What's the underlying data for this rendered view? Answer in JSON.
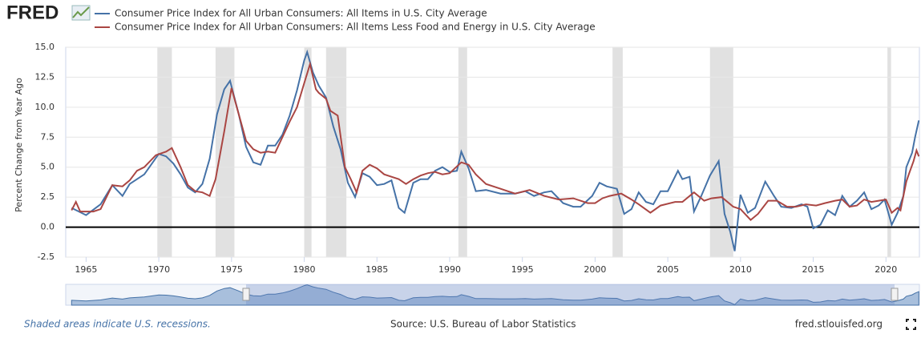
{
  "chart_data": {
    "type": "line",
    "logo": "FRED",
    "ylabel": "Percent Change from Year Ago",
    "note": "Shaded areas indicate U.S. recessions.",
    "source": "Source: U.S. Bureau of Labor Statistics",
    "site": "fred.stlouisfed.org",
    "xlim": [
      1963.6,
      2022.3
    ],
    "xticks": [
      1965,
      1970,
      1975,
      1980,
      1985,
      1990,
      1995,
      2000,
      2005,
      2010,
      2015,
      2020
    ],
    "ylim": [
      -2.5,
      15
    ],
    "yticks": [
      -2.5,
      {
        "value": 0,
        "label": "0.0"
      },
      2.5,
      {
        "value": 5,
        "label": "5.0"
      },
      7.5,
      {
        "value": 10,
        "label": "10.0"
      },
      12.5,
      {
        "value": 15,
        "label": "15.0"
      }
    ],
    "grid": true,
    "recessions": [
      [
        1969.9,
        1970.9
      ],
      [
        1973.9,
        1975.2
      ],
      [
        1980.0,
        1980.5
      ],
      [
        1981.5,
        1982.9
      ],
      [
        1990.6,
        1991.2
      ],
      [
        2001.2,
        2001.9
      ],
      [
        2007.9,
        2009.5
      ],
      [
        2020.1,
        2020.35
      ]
    ],
    "series": [
      {
        "name": "Consumer Price Index for All Urban Consumers: All Items in U.S. City Average",
        "color": "#4572a7",
        "x": [
          1964.0,
          1965.0,
          1966.0,
          1966.8,
          1967.5,
          1968.0,
          1969.0,
          1970.0,
          1970.5,
          1971.0,
          1971.5,
          1972.0,
          1972.5,
          1973.0,
          1973.5,
          1974.0,
          1974.5,
          1974.9,
          1975.5,
          1976.0,
          1976.5,
          1977.0,
          1977.5,
          1978.0,
          1978.5,
          1979.0,
          1979.5,
          1980.0,
          1980.2,
          1980.6,
          1981.0,
          1981.5,
          1982.0,
          1982.5,
          1983.0,
          1983.5,
          1984.0,
          1984.5,
          1985.0,
          1985.5,
          1986.0,
          1986.5,
          1986.9,
          1987.5,
          1988.0,
          1988.5,
          1989.0,
          1989.5,
          1990.0,
          1990.5,
          1990.8,
          1991.3,
          1991.8,
          1992.5,
          1993.5,
          1994.5,
          1995.2,
          1995.8,
          1996.5,
          1997.0,
          1997.8,
          1998.5,
          1999.0,
          1999.8,
          2000.3,
          2000.8,
          2001.5,
          2002.0,
          2002.5,
          2003.0,
          2003.5,
          2004.0,
          2004.5,
          2005.0,
          2005.7,
          2006.0,
          2006.5,
          2006.8,
          2007.3,
          2007.9,
          2008.5,
          2008.9,
          2009.3,
          2009.6,
          2010.0,
          2010.5,
          2011.0,
          2011.7,
          2012.3,
          2012.8,
          2013.5,
          2014.2,
          2014.6,
          2015.0,
          2015.5,
          2016.0,
          2016.5,
          2017.0,
          2017.5,
          2018.0,
          2018.5,
          2019.0,
          2019.5,
          2019.9,
          2020.4,
          2020.8,
          2021.2,
          2021.4,
          2021.8,
          2022.0,
          2022.26
        ],
        "values": [
          1.6,
          1.0,
          1.9,
          3.5,
          2.6,
          3.6,
          4.4,
          6.1,
          5.9,
          5.3,
          4.4,
          3.3,
          2.9,
          3.6,
          5.7,
          9.4,
          11.5,
          12.2,
          9.4,
          6.7,
          5.4,
          5.2,
          6.8,
          6.8,
          7.7,
          9.3,
          11.4,
          13.9,
          14.6,
          12.9,
          11.8,
          10.8,
          8.4,
          6.5,
          3.7,
          2.5,
          4.5,
          4.2,
          3.5,
          3.6,
          3.9,
          1.6,
          1.2,
          3.7,
          4.0,
          4.0,
          4.7,
          5.0,
          4.6,
          4.7,
          6.3,
          4.9,
          3.0,
          3.1,
          2.8,
          2.8,
          3.0,
          2.6,
          2.9,
          3.0,
          2.0,
          1.7,
          1.7,
          2.6,
          3.7,
          3.4,
          3.2,
          1.1,
          1.5,
          2.9,
          2.1,
          1.9,
          3.0,
          3.0,
          4.7,
          4.0,
          4.2,
          1.3,
          2.6,
          4.3,
          5.5,
          1.1,
          -0.4,
          -2.0,
          2.7,
          1.2,
          1.6,
          3.8,
          2.6,
          1.7,
          1.6,
          1.9,
          1.7,
          -0.1,
          0.2,
          1.4,
          1.0,
          2.6,
          1.7,
          2.2,
          2.9,
          1.5,
          1.8,
          2.3,
          0.2,
          1.2,
          2.6,
          5.0,
          6.2,
          7.5,
          8.9
        ]
      },
      {
        "name": "Consumer Price Index for All Urban Consumers: All Items Less Food and Energy in U.S. City Average",
        "color": "#aa4643",
        "x": [
          1964.0,
          1964.3,
          1964.6,
          1965.0,
          1965.5,
          1966.0,
          1966.8,
          1967.5,
          1968.0,
          1968.5,
          1969.0,
          1969.8,
          1970.5,
          1970.9,
          1971.5,
          1972.0,
          1972.5,
          1973.0,
          1973.5,
          1973.9,
          1974.5,
          1975.0,
          1975.5,
          1976.0,
          1976.5,
          1977.0,
          1977.5,
          1978.0,
          1978.5,
          1979.0,
          1979.5,
          1980.0,
          1980.4,
          1980.8,
          1981.0,
          1981.5,
          1981.8,
          1982.3,
          1982.8,
          1983.2,
          1983.6,
          1984.0,
          1984.5,
          1985.0,
          1985.5,
          1986.0,
          1986.5,
          1987.0,
          1987.5,
          1988.0,
          1988.5,
          1989.0,
          1989.5,
          1990.0,
          1990.8,
          1991.3,
          1991.8,
          1992.5,
          1993.5,
          1994.5,
          1995.5,
          1996.5,
          1997.5,
          1998.5,
          1999.5,
          2000.0,
          2000.5,
          2001.0,
          2001.8,
          2002.5,
          2003.0,
          2003.8,
          2004.5,
          2005.5,
          2006.0,
          2006.8,
          2007.5,
          2008.0,
          2008.7,
          2009.5,
          2010.0,
          2010.7,
          2011.2,
          2011.9,
          2012.5,
          2013.2,
          2013.8,
          2014.5,
          2015.2,
          2015.8,
          2016.5,
          2017.0,
          2017.5,
          2018.0,
          2018.5,
          2019.0,
          2019.5,
          2020.0,
          2020.4,
          2020.8,
          2021.0,
          2021.4,
          2021.6,
          2021.9,
          2022.1,
          2022.26
        ],
        "values": [
          1.4,
          2.1,
          1.3,
          1.3,
          1.3,
          1.5,
          3.5,
          3.4,
          3.9,
          4.7,
          5.0,
          6.0,
          6.3,
          6.6,
          5.0,
          3.5,
          3.0,
          2.9,
          2.6,
          4.0,
          8.0,
          11.6,
          9.4,
          7.2,
          6.5,
          6.2,
          6.3,
          6.2,
          7.5,
          8.8,
          10.0,
          12.0,
          13.6,
          11.5,
          11.2,
          10.7,
          9.7,
          9.3,
          5.0,
          4.0,
          2.9,
          4.7,
          5.2,
          4.9,
          4.4,
          4.2,
          4.0,
          3.6,
          4.0,
          4.3,
          4.5,
          4.6,
          4.4,
          4.5,
          5.4,
          5.2,
          4.4,
          3.6,
          3.2,
          2.8,
          3.1,
          2.6,
          2.3,
          2.4,
          2.0,
          2.0,
          2.4,
          2.6,
          2.8,
          2.3,
          1.9,
          1.2,
          1.8,
          2.1,
          2.1,
          2.9,
          2.2,
          2.4,
          2.5,
          1.7,
          1.5,
          0.6,
          1.1,
          2.2,
          2.2,
          1.7,
          1.7,
          1.9,
          1.8,
          2.0,
          2.2,
          2.3,
          1.7,
          1.8,
          2.3,
          2.1,
          2.2,
          2.3,
          1.2,
          1.6,
          1.4,
          3.8,
          4.5,
          5.5,
          6.4,
          5.9
        ]
      }
    ]
  }
}
